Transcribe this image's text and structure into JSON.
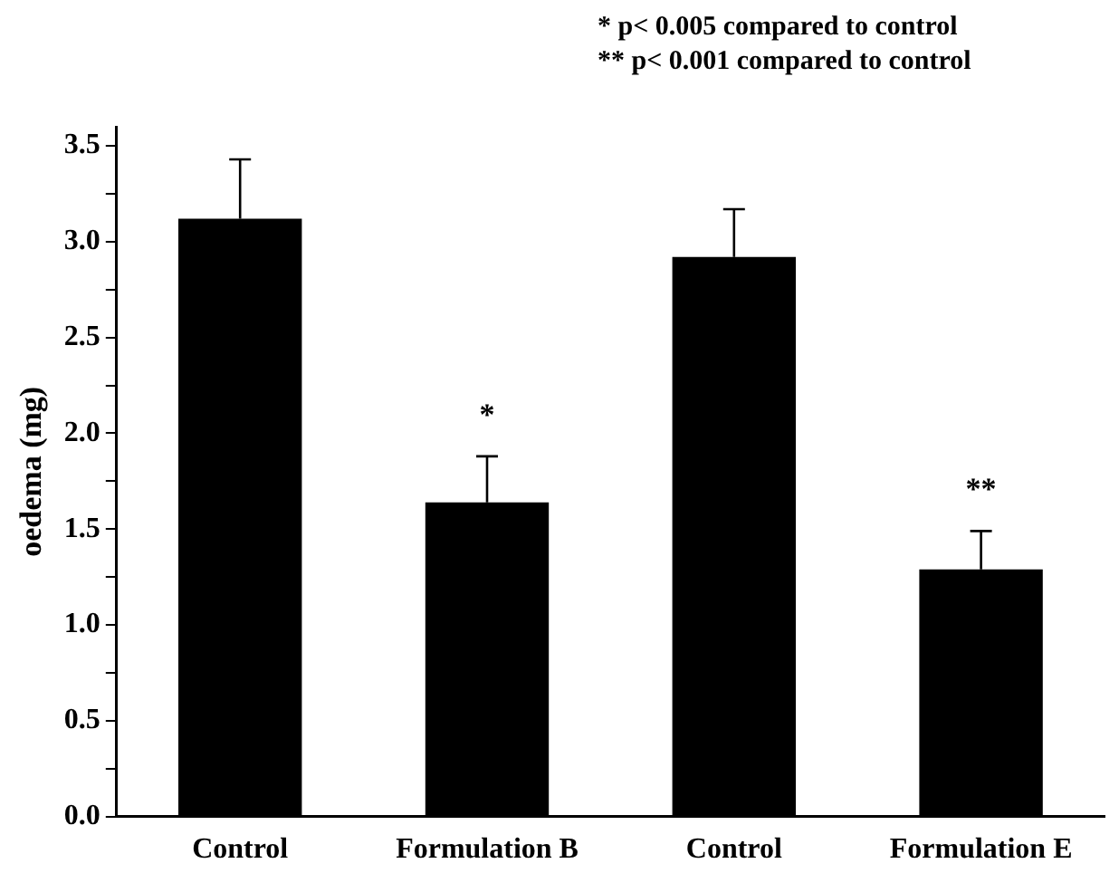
{
  "chart_data": {
    "type": "bar",
    "ylabel": "oedema (mg)",
    "categories": [
      "Control",
      "Formulation B",
      "Control",
      "Formulation E"
    ],
    "values": [
      3.12,
      1.64,
      2.92,
      1.29
    ],
    "errors": [
      0.31,
      0.24,
      0.25,
      0.2
    ],
    "color": "#000000",
    "ylim": [
      0,
      3.6
    ],
    "yticks": [
      {
        "value": 0,
        "label": "0.0"
      },
      {
        "value": 0.25,
        "label": null
      },
      {
        "value": 0.5,
        "label": "0.5"
      },
      {
        "value": 0.75,
        "label": null
      },
      {
        "value": 1,
        "label": "1.0"
      },
      {
        "value": 1.25,
        "label": null
      },
      {
        "value": 1.5,
        "label": "1.5"
      },
      {
        "value": 1.75,
        "label": null
      },
      {
        "value": 2,
        "label": "2.0"
      },
      {
        "value": 2.25,
        "label": null
      },
      {
        "value": 2.5,
        "label": "2.5"
      },
      {
        "value": 2.75,
        "label": null
      },
      {
        "value": 3,
        "label": "3.0"
      },
      {
        "value": 3.25,
        "label": null
      },
      {
        "value": 3.5,
        "label": "3.5"
      }
    ],
    "annotations": [
      "* p< 0.005 compared to control",
      "** p< 0.001 compared to control",
      {
        "text": "*",
        "x": "Formulation B",
        "y": 1.88
      },
      {
        "text": "**",
        "x": "Formulation E",
        "y": 1.49
      }
    ],
    "grid": false,
    "legend": false
  }
}
